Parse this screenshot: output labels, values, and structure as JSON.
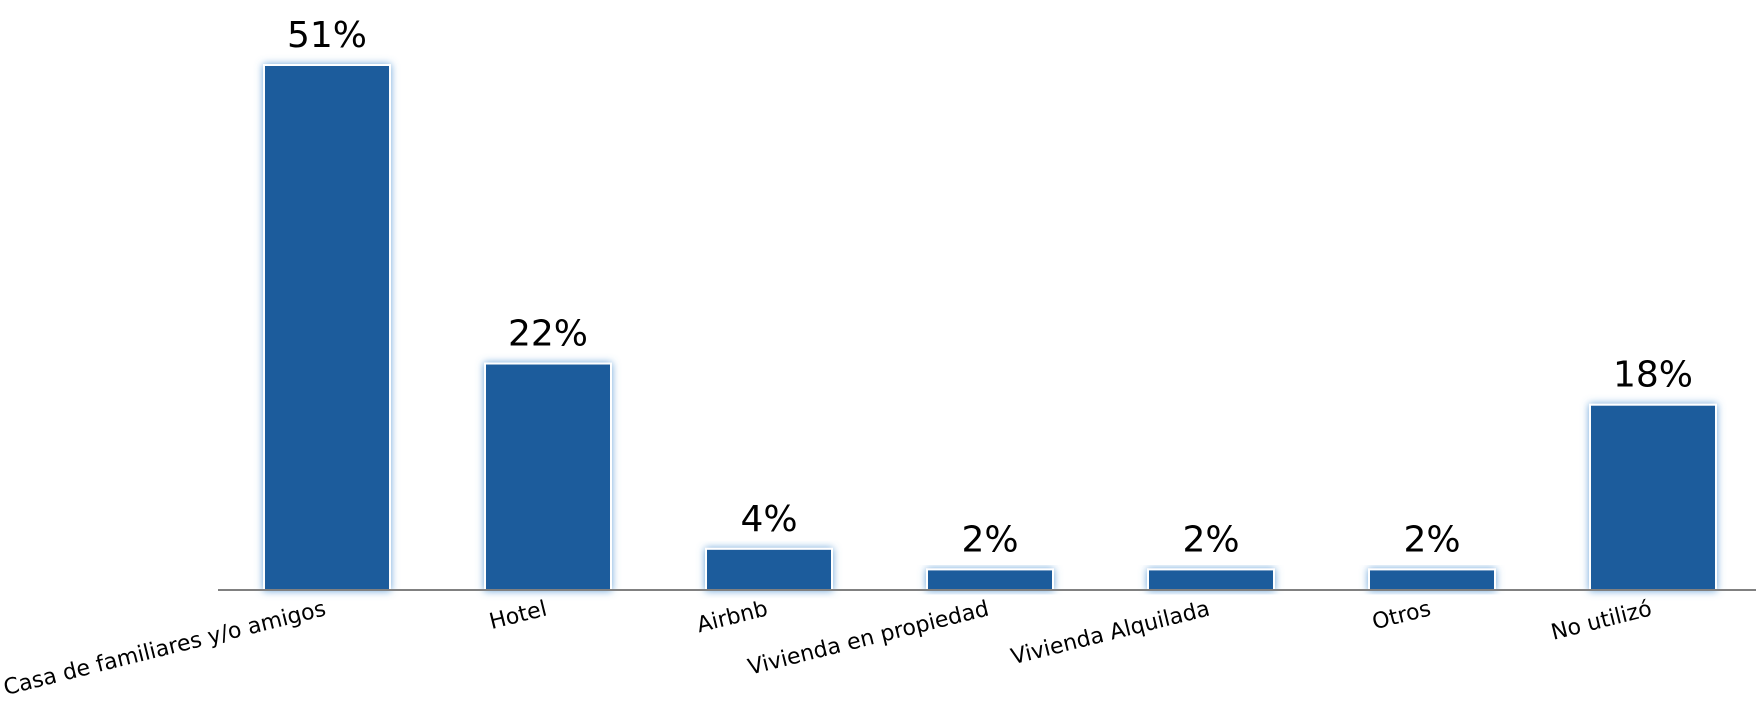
{
  "chart_data": {
    "type": "bar",
    "categories": [
      "Casa de familiares y/o amigos",
      "Hotel",
      "Airbnb",
      "Vivienda en propiedad",
      "Vivienda Alquilada",
      "Otros",
      "No utilizó"
    ],
    "values": [
      51,
      22,
      4,
      2,
      2,
      2,
      18
    ],
    "value_labels": [
      "51%",
      "22%",
      "4%",
      "2%",
      "2%",
      "2%",
      "18%"
    ],
    "unit": "%",
    "ylim": [
      0,
      51
    ],
    "grid": false,
    "legend": "none",
    "bar_color": "#1f5c9c",
    "glow_color": "#5b9bd5",
    "axis_color": "#808080"
  }
}
